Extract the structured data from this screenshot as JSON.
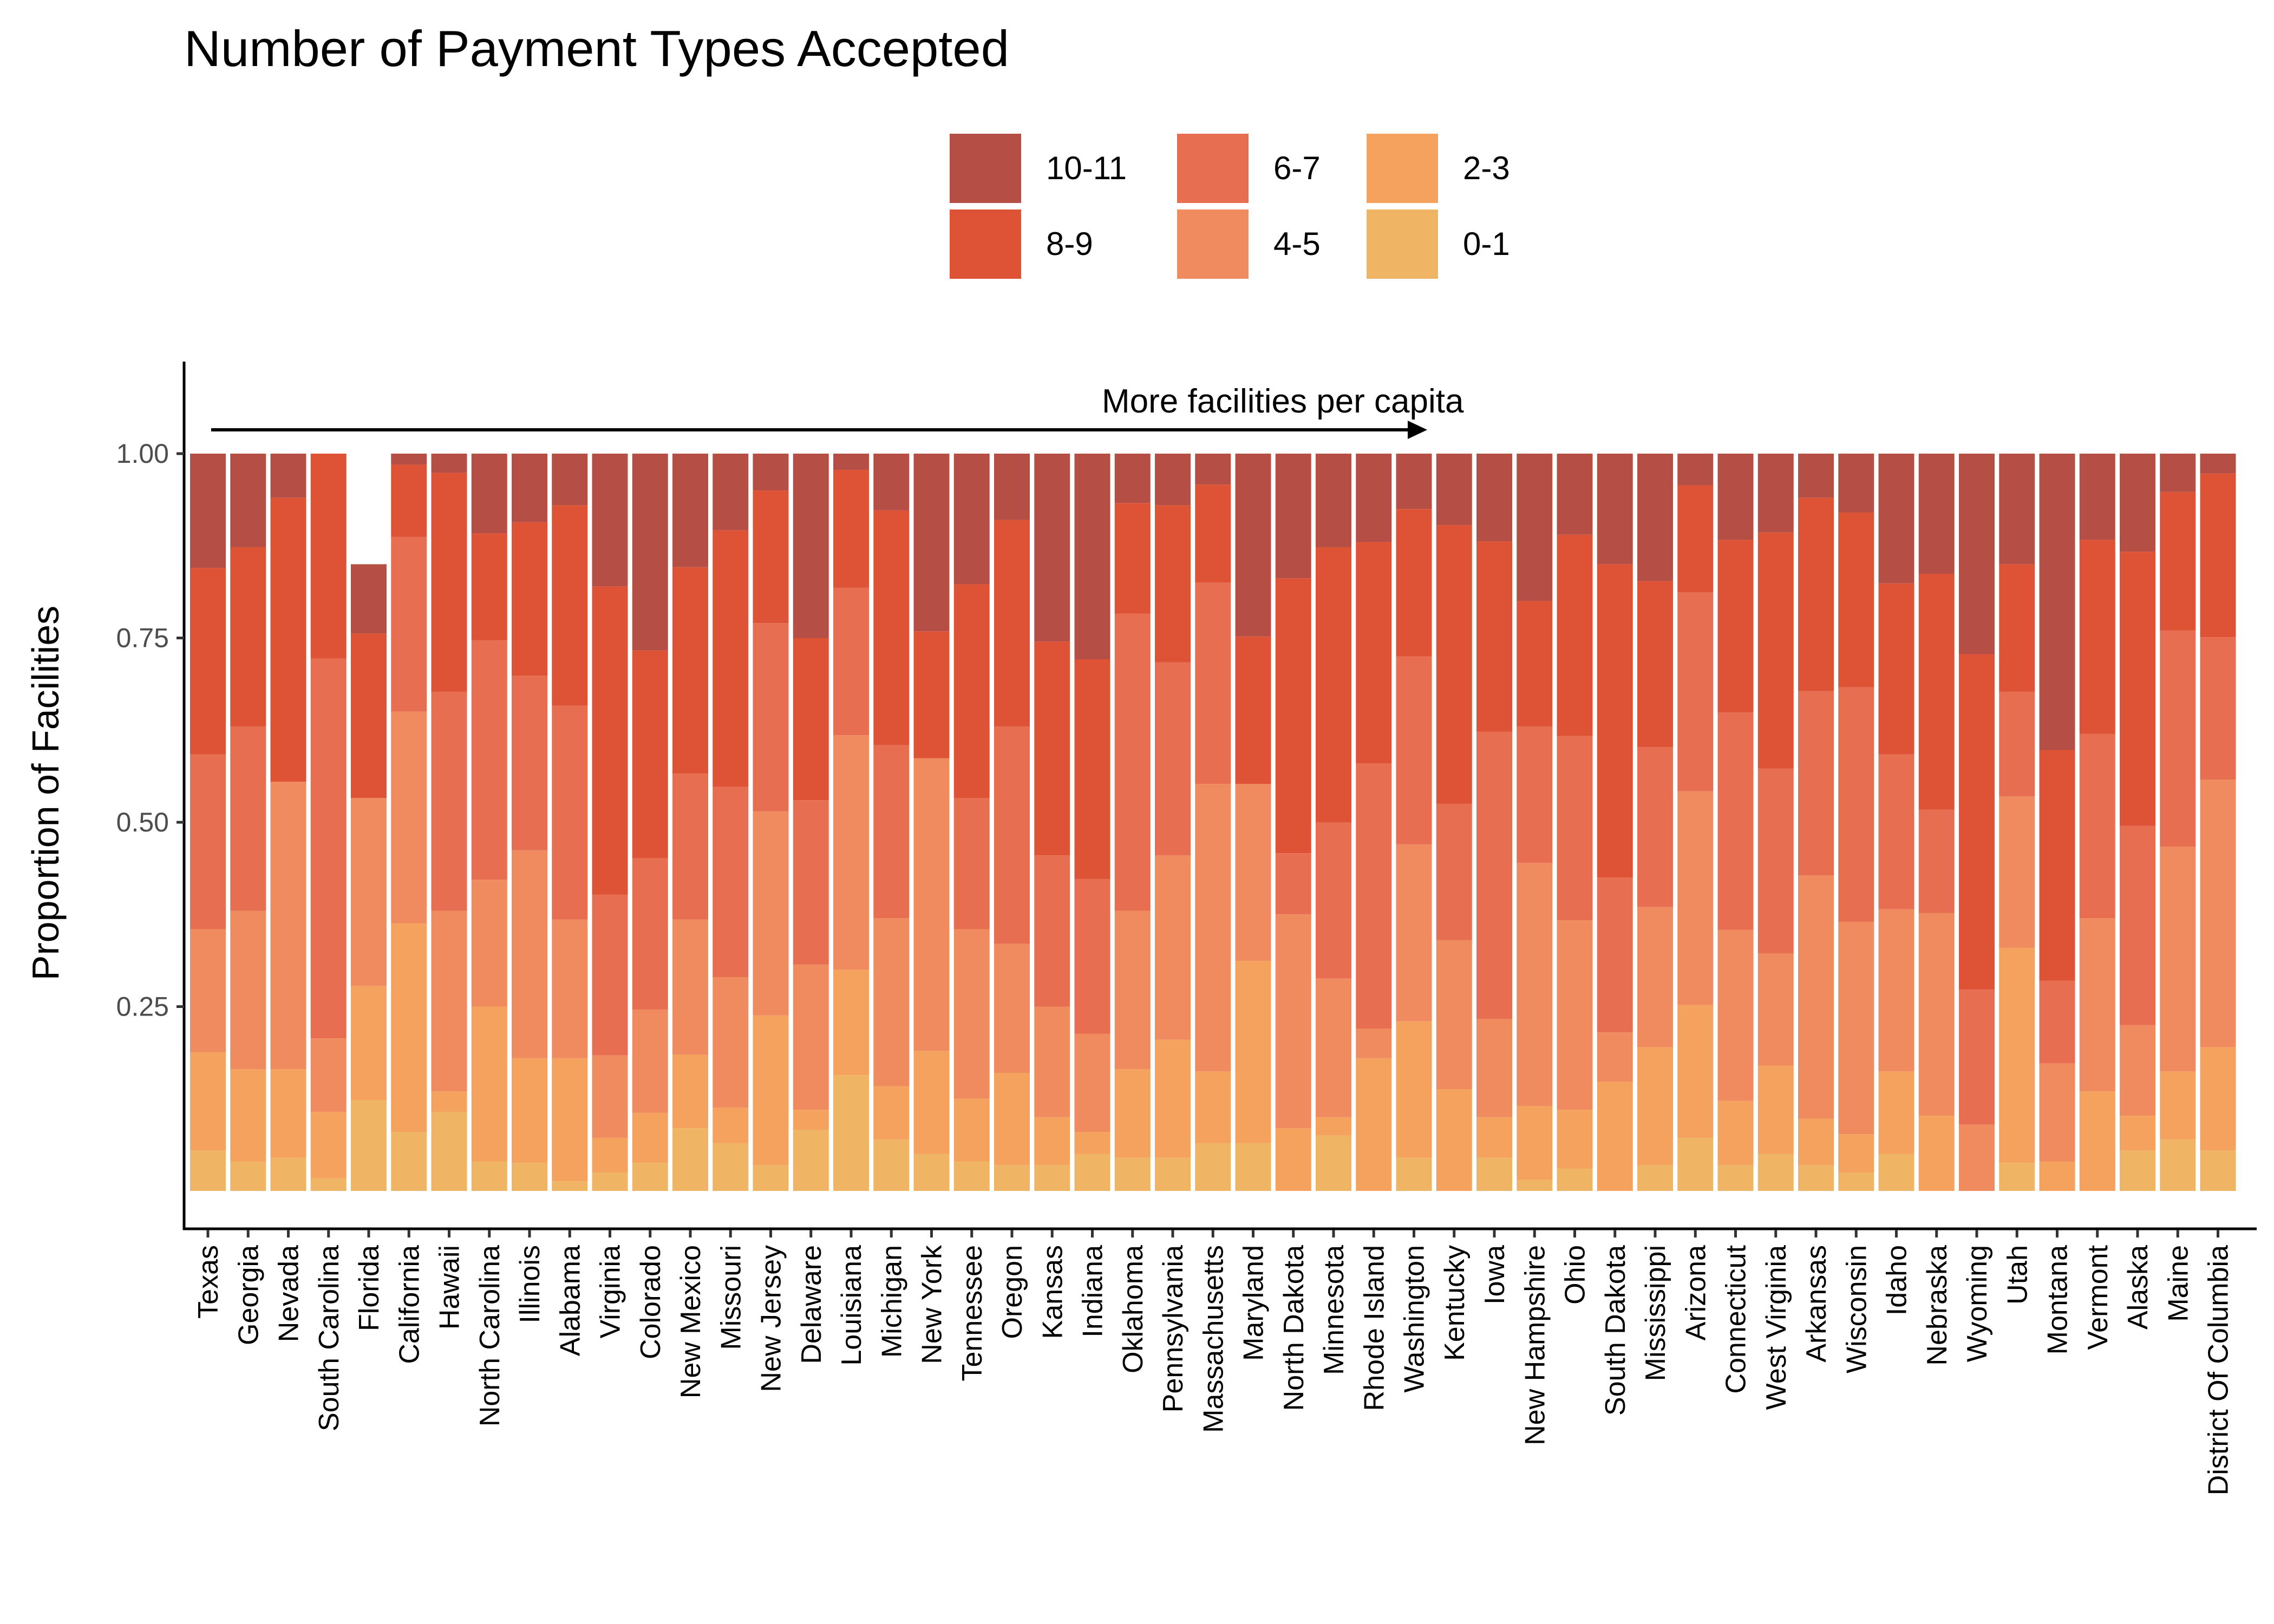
{
  "chart_data": {
    "type": "bar",
    "stacked": true,
    "title": "Number of Payment Types Accepted",
    "ylabel": "Proportion of Facilities",
    "xlabel": "",
    "ylim": [
      -0.05,
      1.12
    ],
    "yticks": [
      0.25,
      0.5,
      0.75,
      1.0
    ],
    "ytick_labels": [
      "0.25",
      "0.50",
      "0.75",
      "1.00"
    ],
    "grid": false,
    "legend_position": "top",
    "annotation": "More facilities per capita",
    "categories": [
      "Texas",
      "Georgia",
      "Nevada",
      "South Carolina",
      "Florida",
      "California",
      "Hawaii",
      "North Carolina",
      "Illinois",
      "Alabama",
      "Virginia",
      "Colorado",
      "New Mexico",
      "Missouri",
      "New Jersey",
      "Delaware",
      "Louisiana",
      "Michigan",
      "New York",
      "Tennessee",
      "Oregon",
      "Kansas",
      "Indiana",
      "Oklahoma",
      "Pennsylvania",
      "Massachusetts",
      "Maryland",
      "North Dakota",
      "Minnesota",
      "Rhode Island",
      "Washington",
      "Kentucky",
      "Iowa",
      "New Hampshire",
      "Ohio",
      "South Dakota",
      "Mississippi",
      "Arizona",
      "Connecticut",
      "West Virginia",
      "Arkansas",
      "Wisconsin",
      "Idaho",
      "Nebraska",
      "Wyoming",
      "Utah",
      "Montana",
      "Vermont",
      "Alaska",
      "Maine",
      "District Of Columbia"
    ],
    "series": [
      {
        "name": "0-1",
        "color": "#EFB564",
        "values": [
          0.055,
          0.04,
          0.045,
          0.017,
          0.123,
          0.08,
          0.107,
          0.04,
          0.038,
          0.013,
          0.025,
          0.038,
          0.085,
          0.065,
          0.035,
          0.083,
          0.157,
          0.07,
          0.05,
          0.04,
          0.035,
          0.035,
          0.05,
          0.045,
          0.045,
          0.065,
          0.065,
          0.0,
          0.075,
          0.0,
          0.045,
          0.0,
          0.045,
          0.015,
          0.03,
          0.0,
          0.035,
          0.072,
          0.035,
          0.05,
          0.035,
          0.025,
          0.05,
          0.0,
          0.0,
          0.038,
          0.0,
          0.0,
          0.055,
          0.07,
          0.055
        ]
      },
      {
        "name": "2-3",
        "color": "#F4A25E",
        "values": [
          0.133,
          0.125,
          0.12,
          0.09,
          0.155,
          0.283,
          0.028,
          0.21,
          0.142,
          0.167,
          0.047,
          0.068,
          0.1,
          0.048,
          0.203,
          0.027,
          0.143,
          0.072,
          0.14,
          0.085,
          0.125,
          0.065,
          0.03,
          0.12,
          0.16,
          0.097,
          0.247,
          0.085,
          0.025,
          0.18,
          0.185,
          0.138,
          0.055,
          0.1,
          0.08,
          0.148,
          0.16,
          0.18,
          0.087,
          0.12,
          0.063,
          0.052,
          0.112,
          0.102,
          0.0,
          0.292,
          0.04,
          0.135,
          0.047,
          0.092,
          0.14
        ]
      },
      {
        "name": "4-5",
        "color": "#EF8B5E",
        "values": [
          0.167,
          0.215,
          0.39,
          0.1,
          0.255,
          0.287,
          0.245,
          0.172,
          0.282,
          0.188,
          0.112,
          0.14,
          0.183,
          0.177,
          0.277,
          0.197,
          0.318,
          0.228,
          0.397,
          0.23,
          0.175,
          0.15,
          0.133,
          0.215,
          0.25,
          0.39,
          0.24,
          0.29,
          0.188,
          0.04,
          0.24,
          0.202,
          0.133,
          0.33,
          0.257,
          0.067,
          0.19,
          0.29,
          0.232,
          0.152,
          0.33,
          0.288,
          0.22,
          0.275,
          0.09,
          0.205,
          0.133,
          0.235,
          0.123,
          0.305,
          0.363
        ]
      },
      {
        "name": "6-7",
        "color": "#E86E52",
        "values": [
          0.237,
          0.25,
          0.0,
          0.515,
          0.0,
          0.237,
          0.297,
          0.325,
          0.237,
          0.29,
          0.218,
          0.205,
          0.198,
          0.258,
          0.255,
          0.223,
          0.2,
          0.235,
          0.0,
          0.178,
          0.295,
          0.205,
          0.21,
          0.403,
          0.262,
          0.273,
          0.0,
          0.083,
          0.212,
          0.36,
          0.255,
          0.185,
          0.39,
          0.185,
          0.25,
          0.21,
          0.217,
          0.27,
          0.295,
          0.251,
          0.25,
          0.318,
          0.21,
          0.14,
          0.183,
          0.142,
          0.112,
          0.25,
          0.27,
          0.293,
          0.193
        ]
      },
      {
        "name": "8-9",
        "color": "#DE5235",
        "values": [
          0.253,
          0.243,
          0.385,
          0.278,
          0.223,
          0.098,
          0.297,
          0.145,
          0.208,
          0.272,
          0.418,
          0.282,
          0.28,
          0.348,
          0.18,
          0.22,
          0.16,
          0.318,
          0.172,
          0.29,
          0.28,
          0.29,
          0.298,
          0.15,
          0.213,
          0.133,
          0.2,
          0.373,
          0.373,
          0.3,
          0.2,
          0.378,
          0.258,
          0.17,
          0.273,
          0.425,
          0.225,
          0.145,
          0.234,
          0.32,
          0.262,
          0.237,
          0.232,
          0.32,
          0.455,
          0.173,
          0.313,
          0.263,
          0.372,
          0.188,
          0.222
        ]
      },
      {
        "name": "10-11",
        "color": "#B54F45",
        "values": [
          0.155,
          0.127,
          0.06,
          0.0,
          0.094,
          0.015,
          0.026,
          0.108,
          0.093,
          0.07,
          0.18,
          0.267,
          0.154,
          0.104,
          0.05,
          0.25,
          0.022,
          0.077,
          0.241,
          0.177,
          0.09,
          0.255,
          0.279,
          0.067,
          0.07,
          0.042,
          0.248,
          0.169,
          0.127,
          0.12,
          0.075,
          0.097,
          0.119,
          0.2,
          0.11,
          0.15,
          0.173,
          0.043,
          0.117,
          0.107,
          0.06,
          0.08,
          0.176,
          0.163,
          0.272,
          0.15,
          0.402,
          0.117,
          0.133,
          0.052,
          0.027
        ]
      }
    ],
    "legend": {
      "columns": [
        [
          "10-11",
          "8-9"
        ],
        [
          "6-7",
          "4-5"
        ],
        [
          "2-3",
          "0-1"
        ]
      ]
    }
  }
}
